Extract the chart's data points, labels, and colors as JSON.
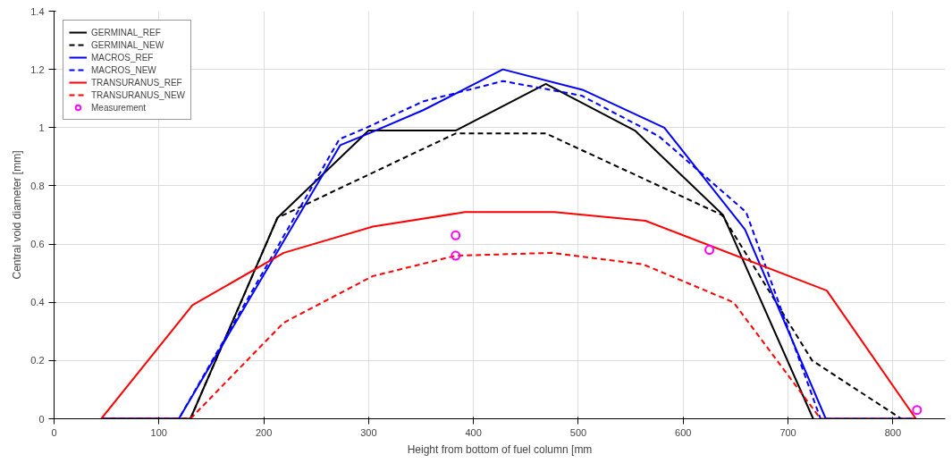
{
  "chart_data": {
    "type": "line",
    "xlabel": "Height from bottom of fuel column [mm",
    "ylabel": "Central void diameter [mm]",
    "xlim": [
      0,
      850
    ],
    "xticks": [
      0,
      100,
      200,
      300,
      400,
      500,
      600,
      700,
      800
    ],
    "ylim": [
      0,
      1.4
    ],
    "yticks": [
      0,
      0.2,
      0.4,
      0.6,
      0.8,
      1,
      1.2,
      1.4
    ],
    "grid": true,
    "legend": "top left",
    "series": [
      {
        "name": "GERMINAL_REF",
        "color": "#000000",
        "line_style": "solid",
        "x": [
          45,
          130,
          213,
          300,
          383,
          469,
          554,
          638,
          724
        ],
        "values": [
          0,
          0,
          0.69,
          0.99,
          0.99,
          1.15,
          0.99,
          0.7,
          0
        ]
      },
      {
        "name": "GERMINAL_NEW",
        "color": "#000000",
        "line_style": "dashed",
        "x": [
          45,
          130,
          213,
          383,
          469,
          637,
          723,
          808
        ],
        "values": [
          0,
          0,
          0.69,
          0.98,
          0.98,
          0.7,
          0.2,
          0
        ]
      },
      {
        "name": "MACROS_REF",
        "color": "#0000ff",
        "line_style": "solid",
        "x": [
          45,
          119,
          273,
          300,
          352,
          428,
          504,
          582,
          659,
          736,
          822
        ],
        "values": [
          0,
          0,
          0.94,
          0.98,
          1.06,
          1.2,
          1.13,
          1.0,
          0.65,
          0,
          0
        ]
      },
      {
        "name": "MACROS_NEW",
        "color": "#0000ff",
        "line_style": "dashed",
        "x": [
          45,
          119,
          272,
          298,
          352,
          428,
          503,
          577,
          660,
          731,
          822
        ],
        "values": [
          0,
          0,
          0.96,
          1.0,
          1.09,
          1.16,
          1.11,
          0.97,
          0.71,
          0,
          0
        ]
      },
      {
        "name": "TRANSURANUS_REF",
        "color": "#ff0000",
        "line_style": "solid",
        "x": [
          45,
          132,
          219,
          304,
          392,
          477,
          564,
          737,
          822
        ],
        "values": [
          0,
          0.39,
          0.57,
          0.66,
          0.71,
          0.71,
          0.68,
          0.44,
          0
        ]
      },
      {
        "name": "TRANSURANUS_NEW",
        "color": "#ff0000",
        "line_style": "dashed",
        "x": [
          45,
          130,
          219,
          304,
          383,
          475,
          562,
          648,
          731,
          822
        ],
        "values": [
          0,
          0,
          0.33,
          0.49,
          0.56,
          0.57,
          0.53,
          0.4,
          0,
          0
        ]
      },
      {
        "name": "Measurement",
        "type": "scatter",
        "marker": "circle",
        "color": "#ff00ff",
        "x": [
          383,
          383,
          625,
          823
        ],
        "values": [
          0.63,
          0.56,
          0.58,
          0.03
        ]
      }
    ]
  }
}
